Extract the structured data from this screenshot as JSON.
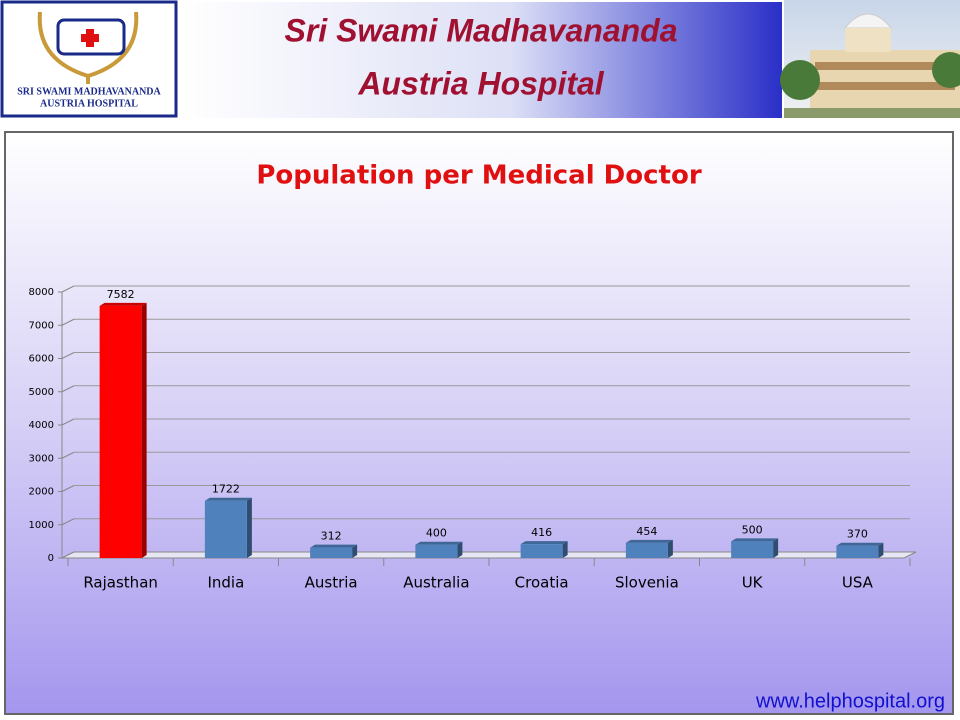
{
  "header": {
    "title_line1": "Sri Swami Madhavananda",
    "title_line2": "Austria Hospital",
    "logo_line1": "SRI SWAMI MADHAVANANDA",
    "logo_line2": "AUSTRIA HOSPITAL"
  },
  "footer": {
    "url": "www.helphospital.org"
  },
  "chart_data": {
    "type": "bar",
    "title": "Population per Medical Doctor",
    "categories": [
      "Rajasthan",
      "India",
      "Austria",
      "Australia",
      "Croatia",
      "Slovenia",
      "UK",
      "USA"
    ],
    "values": [
      7582,
      1722,
      312,
      400,
      416,
      454,
      500,
      370
    ],
    "colors": [
      "#ff0000",
      "#4f81bd",
      "#4f81bd",
      "#4f81bd",
      "#4f81bd",
      "#4f81bd",
      "#4f81bd",
      "#4f81bd"
    ],
    "ylim": [
      0,
      8000
    ],
    "yticks": [
      0,
      1000,
      2000,
      3000,
      4000,
      5000,
      6000,
      7000,
      8000
    ],
    "grid": true
  }
}
